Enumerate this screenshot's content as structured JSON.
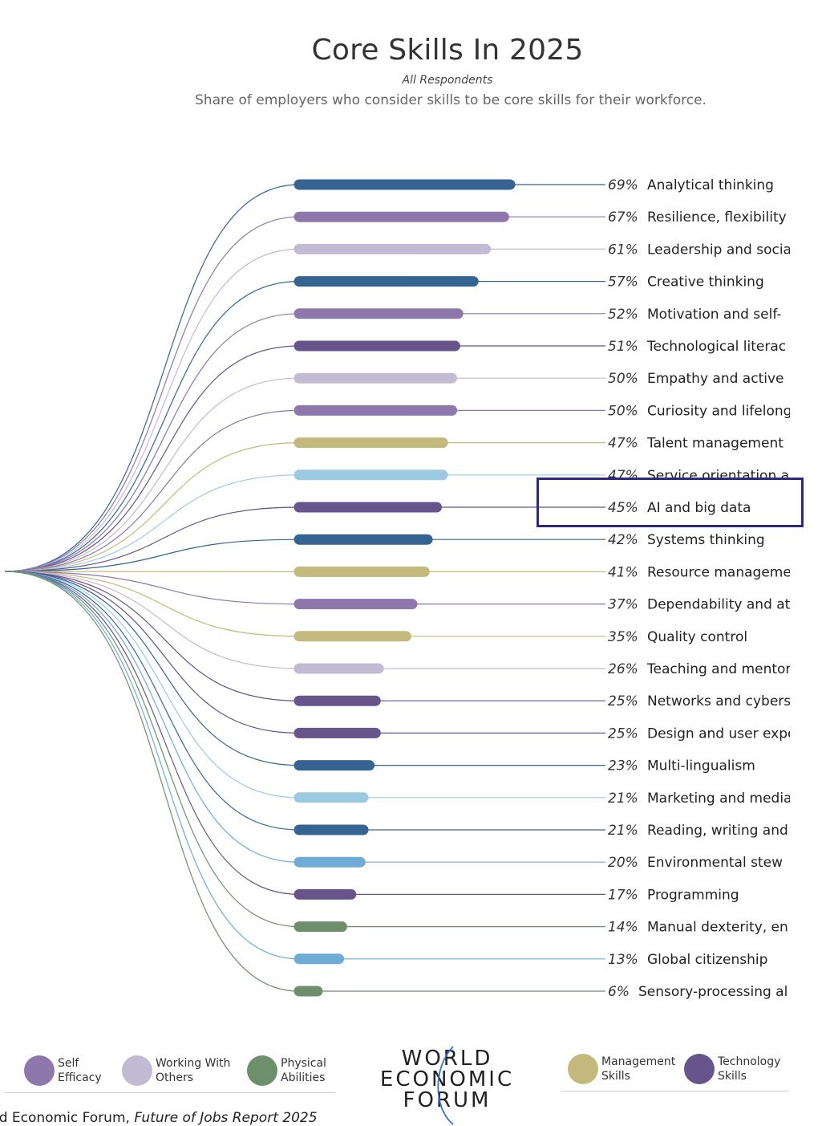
{
  "header": {
    "title": "Core Skills In 2025",
    "subtitle": "All Respondents",
    "description": "Share of employers who consider skills to be core skills for their workforce."
  },
  "chart_data": {
    "type": "bar",
    "title": "Core Skills In 2025",
    "subtitle": "All Respondents",
    "value_unit": "%",
    "xlim": [
      0,
      100
    ],
    "categories": [
      "Analytical thinking",
      "Resilience, flexibility",
      "Leadership and socia",
      "Creative thinking",
      "Motivation and self-",
      "Technological literac",
      "Empathy and active",
      "Curiosity and lifelong",
      "Talent management",
      "Service orientation a",
      "AI and big data",
      "Systems thinking",
      "Resource manageme",
      "Dependability and at",
      "Quality control",
      "Teaching and mentor",
      "Networks and cybers",
      "Design and user expe",
      "Multi-lingualism",
      "Marketing and media",
      "Reading, writing and",
      "Environmental stew",
      "Programming",
      "Manual dexterity, en",
      "Global citizenship",
      "Sensory-processing al"
    ],
    "values": [
      69,
      67,
      61,
      57,
      52,
      51,
      50,
      50,
      47,
      47,
      45,
      42,
      41,
      37,
      35,
      26,
      25,
      25,
      23,
      21,
      21,
      20,
      17,
      14,
      13,
      6
    ],
    "groups": [
      "cognitive",
      "self",
      "working",
      "cognitive",
      "self",
      "tech",
      "working",
      "self",
      "mgmt",
      "engage",
      "tech",
      "cognitive",
      "mgmt",
      "self",
      "mgmt",
      "working",
      "tech",
      "tech",
      "cognitive",
      "engage",
      "cognitive",
      "ethics",
      "tech",
      "physical",
      "ethics",
      "physical"
    ],
    "group_colors": {
      "cognitive": "#366492",
      "self": "#8e78ab",
      "working": "#c3bbd3",
      "tech": "#67548a",
      "mgmt": "#c3b97d",
      "engage": "#9ec9e2",
      "ethics": "#6eabd6",
      "physical": "#6e8f6c"
    },
    "highlighted": "AI and big data"
  },
  "legend_left": [
    {
      "label": "Self\nEfficacy",
      "color": "#8e78ab"
    },
    {
      "label": "Working With\nOthers",
      "color": "#c3bbd3"
    },
    {
      "label": "Physical\nAbilities",
      "color": "#6e8f6c"
    }
  ],
  "legend_right": [
    {
      "label": "Management\nSkills",
      "color": "#c3b97d"
    },
    {
      "label": "Technology\nSkills",
      "color": "#67548a"
    }
  ],
  "logo": {
    "line1": "WORLD",
    "line2": "ECONOMIC",
    "line3": "FORUM"
  },
  "source": {
    "prefix": "ld Economic Forum, ",
    "report": "Future of Jobs Report 2025"
  }
}
